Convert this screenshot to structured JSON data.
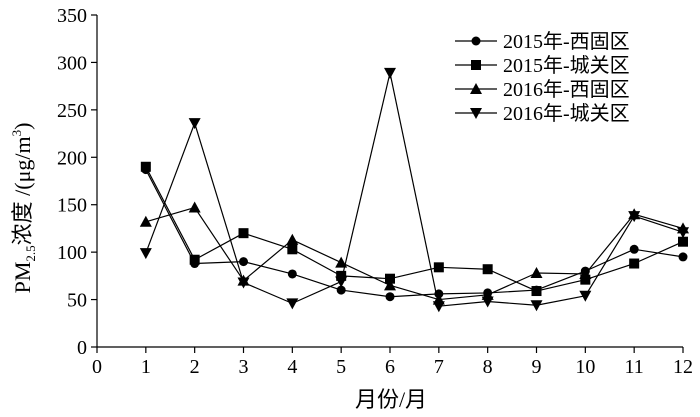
{
  "chart_data": {
    "type": "line",
    "xlabel": "月份/月",
    "ylabel_parts": {
      "main": "PM",
      "subscript": "2.5",
      "text": "浓度 /(μg/m",
      "superscript": "3",
      "close": ")"
    },
    "xlim": [
      0,
      12
    ],
    "ylim": [
      0,
      350
    ],
    "x_ticks": [
      "0",
      "1",
      "2",
      "3",
      "4",
      "5",
      "6",
      "7",
      "8",
      "9",
      "10",
      "11",
      "12"
    ],
    "y_ticks": [
      "0",
      "50",
      "100",
      "150",
      "200",
      "250",
      "300",
      "350"
    ],
    "grid": false,
    "legend_position": "top-right",
    "x": [
      1,
      2,
      3,
      4,
      5,
      6,
      7,
      8,
      9,
      10,
      11,
      12
    ],
    "series": [
      {
        "name": "2015年-西固区",
        "marker": "circle",
        "values": [
          187,
          88,
          90,
          77,
          60,
          53,
          56,
          57,
          60,
          80,
          103,
          95
        ]
      },
      {
        "name": "2015年-城关区",
        "marker": "square",
        "values": [
          190,
          92,
          120,
          103,
          75,
          72,
          84,
          82,
          59,
          71,
          88,
          111
        ]
      },
      {
        "name": "2016年-西固区",
        "marker": "triangle-up",
        "values": [
          132,
          147,
          70,
          113,
          89,
          65,
          50,
          55,
          78,
          77,
          140,
          125
        ]
      },
      {
        "name": "2016年-城关区",
        "marker": "triangle-down",
        "values": [
          99,
          236,
          68,
          46,
          69,
          289,
          43,
          48,
          44,
          54,
          138,
          121
        ]
      }
    ]
  }
}
